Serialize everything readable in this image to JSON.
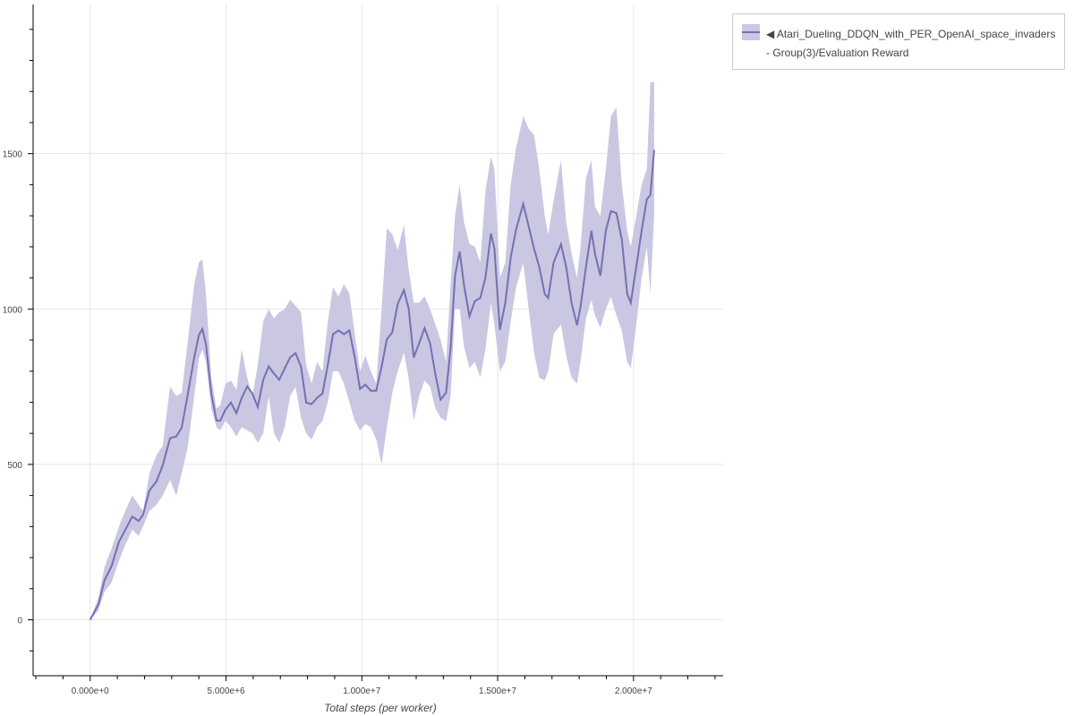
{
  "chart_data": {
    "type": "line",
    "title": "",
    "xlabel": "Total steps (per worker)",
    "ylabel": "",
    "x_unit_multiplier": 1000000,
    "xlim": [
      -2100000,
      23300000
    ],
    "ylim": [
      -180,
      1980
    ],
    "x_ticks": [
      0,
      5000000,
      10000000,
      15000000,
      20000000
    ],
    "x_tick_labels": [
      "0.000e+0",
      "5.000e+6",
      "1.000e+7",
      "1.500e+7",
      "2.000e+7"
    ],
    "y_ticks": [
      0,
      500,
      1000,
      1500
    ],
    "y_tick_labels": [
      "0",
      "500",
      "1000",
      "1500"
    ],
    "grid": true,
    "legend_placement": "outside-top-right",
    "colors": {
      "line": "#7570b3",
      "band": "#c9c7e2"
    },
    "series": [
      {
        "name": "◀ Atari_Dueling_DDQN_with_PER_OpenAI_space_invaders - Group(3)/Evaluation Reward",
        "x": [
          0,
          0.3,
          0.53,
          0.79,
          1.06,
          1.29,
          1.55,
          1.78,
          1.95,
          2.18,
          2.44,
          2.67,
          2.94,
          3.17,
          3.37,
          3.6,
          3.83,
          4.0,
          4.13,
          4.26,
          4.46,
          4.65,
          4.79,
          4.98,
          5.18,
          5.38,
          5.58,
          5.78,
          5.97,
          6.17,
          6.37,
          6.57,
          6.77,
          6.96,
          7.16,
          7.36,
          7.56,
          7.76,
          7.95,
          8.15,
          8.35,
          8.55,
          8.75,
          8.94,
          9.14,
          9.34,
          9.54,
          9.74,
          9.93,
          10.13,
          10.33,
          10.53,
          10.73,
          10.92,
          11.12,
          11.32,
          11.55,
          11.72,
          11.91,
          12.11,
          12.31,
          12.51,
          12.71,
          12.9,
          13.1,
          13.27,
          13.43,
          13.6,
          13.76,
          13.96,
          14.16,
          14.36,
          14.55,
          14.75,
          14.88,
          15.08,
          15.28,
          15.48,
          15.68,
          15.94,
          16.14,
          16.34,
          16.53,
          16.73,
          16.86,
          17.06,
          17.33,
          17.52,
          17.72,
          17.92,
          18.05,
          18.25,
          18.45,
          18.58,
          18.78,
          18.98,
          19.17,
          19.37,
          19.57,
          19.77,
          19.9,
          20.1,
          20.3,
          20.49,
          20.62,
          20.76
        ],
        "mean": [
          0,
          49,
          127,
          173,
          251,
          289,
          332,
          318,
          338,
          416,
          445,
          497,
          584,
          590,
          618,
          728,
          844,
          916,
          936,
          887,
          728,
          641,
          641,
          676,
          699,
          665,
          714,
          751,
          728,
          685,
          772,
          815,
          792,
          772,
          809,
          844,
          858,
          815,
          699,
          694,
          714,
          728,
          821,
          919,
          931,
          919,
          931,
          844,
          743,
          757,
          737,
          737,
          815,
          902,
          925,
          1017,
          1061,
          1003,
          844,
          890,
          939,
          890,
          789,
          708,
          731,
          875,
          1107,
          1185,
          1078,
          977,
          1026,
          1035,
          1101,
          1243,
          1194,
          933,
          1020,
          1165,
          1257,
          1338,
          1266,
          1194,
          1136,
          1049,
          1035,
          1150,
          1208,
          1136,
          1020,
          948,
          1006,
          1136,
          1252,
          1179,
          1107,
          1252,
          1315,
          1309,
          1223,
          1049,
          1020,
          1136,
          1252,
          1353,
          1367,
          1512
        ],
        "lower": [
          0,
          30,
          90,
          120,
          190,
          240,
          290,
          270,
          300,
          350,
          370,
          400,
          450,
          400,
          470,
          560,
          720,
          840,
          870,
          830,
          680,
          620,
          610,
          640,
          620,
          590,
          620,
          610,
          600,
          570,
          600,
          720,
          600,
          570,
          620,
          720,
          750,
          650,
          600,
          580,
          620,
          640,
          700,
          800,
          800,
          760,
          700,
          640,
          610,
          630,
          620,
          580,
          500,
          620,
          730,
          800,
          860,
          780,
          640,
          720,
          770,
          750,
          680,
          650,
          640,
          720,
          1000,
          1000,
          880,
          810,
          830,
          780,
          870,
          1020,
          950,
          800,
          830,
          960,
          1070,
          1150,
          1000,
          860,
          780,
          770,
          800,
          920,
          950,
          850,
          780,
          760,
          830,
          970,
          1030,
          980,
          940,
          1000,
          1040,
          980,
          930,
          830,
          810,
          950,
          1100,
          1200,
          1050,
          1300
        ],
        "upper": [
          0,
          70,
          170,
          230,
          300,
          350,
          400,
          370,
          350,
          470,
          530,
          560,
          750,
          720,
          730,
          900,
          1080,
          1150,
          1160,
          1050,
          780,
          680,
          690,
          760,
          770,
          740,
          870,
          780,
          720,
          820,
          960,
          1000,
          970,
          990,
          1000,
          1030,
          1010,
          990,
          820,
          760,
          830,
          800,
          960,
          1070,
          1040,
          1080,
          1050,
          920,
          800,
          850,
          800,
          760,
          1000,
          1260,
          1240,
          1190,
          1270,
          1130,
          1020,
          1020,
          1040,
          1000,
          950,
          900,
          830,
          1080,
          1300,
          1400,
          1280,
          1210,
          1200,
          1150,
          1380,
          1490,
          1450,
          1100,
          1150,
          1400,
          1520,
          1620,
          1580,
          1560,
          1450,
          1300,
          1240,
          1350,
          1480,
          1280,
          1180,
          1100,
          1200,
          1420,
          1480,
          1330,
          1300,
          1450,
          1620,
          1650,
          1400,
          1250,
          1200,
          1300,
          1400,
          1450,
          1730,
          1730
        ]
      }
    ]
  }
}
